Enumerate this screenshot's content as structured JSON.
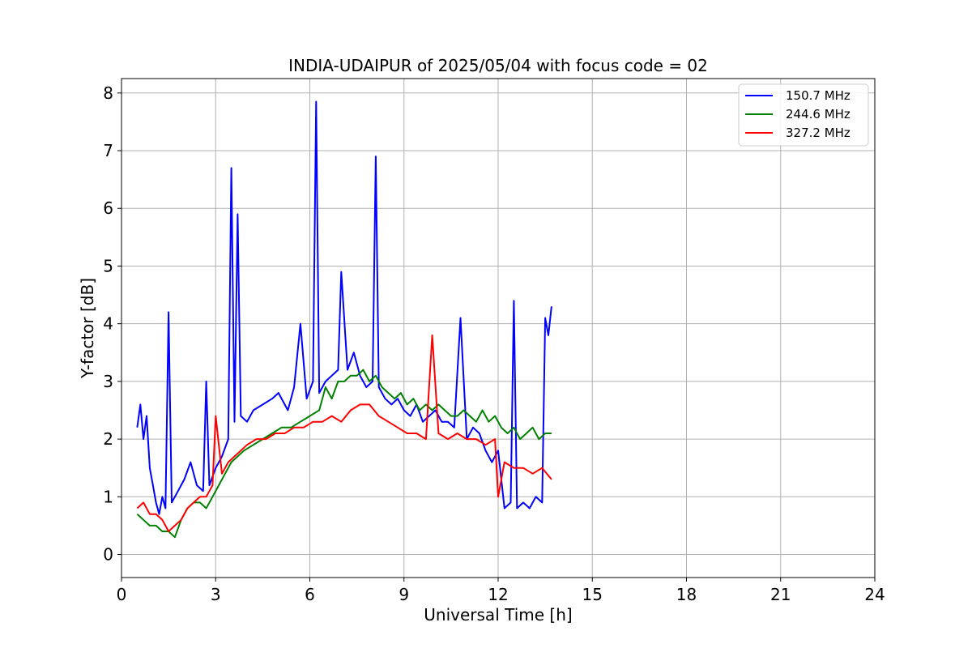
{
  "chart_data": {
    "type": "line",
    "title": "INDIA-UDAIPUR of 2025/05/04 with focus code = 02",
    "xlabel": "Universal Time [h]",
    "ylabel": "Y-factor [dB]",
    "xlim": [
      0,
      24
    ],
    "ylim": [
      -0.4,
      8.25
    ],
    "xticks": [
      0,
      3,
      6,
      9,
      12,
      15,
      18,
      21,
      24
    ],
    "yticks": [
      0,
      1,
      2,
      3,
      4,
      5,
      6,
      7,
      8
    ],
    "grid": true,
    "legend_position": "top-right",
    "series": [
      {
        "name": "150.7 MHz",
        "color": "#0000ff",
        "x": [
          0.5,
          0.6,
          0.7,
          0.8,
          0.9,
          1.0,
          1.1,
          1.2,
          1.3,
          1.4,
          1.5,
          1.6,
          1.8,
          2.0,
          2.2,
          2.4,
          2.6,
          2.7,
          2.8,
          3.0,
          3.2,
          3.4,
          3.5,
          3.6,
          3.7,
          3.8,
          4.0,
          4.2,
          4.5,
          4.8,
          5.0,
          5.3,
          5.5,
          5.7,
          5.9,
          6.1,
          6.2,
          6.3,
          6.5,
          6.7,
          6.9,
          7.0,
          7.2,
          7.4,
          7.6,
          7.8,
          8.0,
          8.1,
          8.2,
          8.4,
          8.6,
          8.8,
          9.0,
          9.2,
          9.4,
          9.6,
          9.8,
          10.0,
          10.2,
          10.4,
          10.6,
          10.8,
          11.0,
          11.2,
          11.4,
          11.6,
          11.8,
          12.0,
          12.2,
          12.4,
          12.5,
          12.6,
          12.8,
          13.0,
          13.2,
          13.4,
          13.5,
          13.6,
          13.7
        ],
        "y": [
          2.2,
          2.6,
          2.0,
          2.4,
          1.5,
          1.2,
          0.9,
          0.7,
          1.0,
          0.8,
          4.2,
          0.9,
          1.1,
          1.3,
          1.6,
          1.2,
          1.1,
          3.0,
          1.2,
          1.5,
          1.7,
          2.0,
          6.7,
          2.3,
          5.9,
          2.4,
          2.3,
          2.5,
          2.6,
          2.7,
          2.8,
          2.5,
          2.9,
          4.0,
          2.7,
          3.0,
          7.85,
          2.8,
          3.0,
          3.1,
          3.2,
          4.9,
          3.2,
          3.5,
          3.1,
          2.9,
          3.0,
          6.9,
          2.9,
          2.7,
          2.6,
          2.7,
          2.5,
          2.4,
          2.6,
          2.3,
          2.4,
          2.5,
          2.3,
          2.3,
          2.2,
          4.1,
          2.0,
          2.2,
          2.1,
          1.8,
          1.6,
          1.8,
          0.8,
          0.9,
          4.4,
          0.8,
          0.9,
          0.8,
          1.0,
          0.9,
          4.1,
          3.8,
          4.3
        ]
      },
      {
        "name": "244.6 MHz",
        "color": "#008000",
        "x": [
          0.5,
          0.7,
          0.9,
          1.1,
          1.3,
          1.5,
          1.7,
          1.9,
          2.1,
          2.3,
          2.5,
          2.7,
          2.9,
          3.1,
          3.3,
          3.5,
          3.7,
          3.9,
          4.2,
          4.5,
          4.8,
          5.1,
          5.4,
          5.7,
          6.0,
          6.3,
          6.5,
          6.7,
          6.9,
          7.1,
          7.3,
          7.5,
          7.7,
          7.9,
          8.1,
          8.3,
          8.5,
          8.7,
          8.9,
          9.1,
          9.3,
          9.5,
          9.7,
          9.9,
          10.1,
          10.3,
          10.5,
          10.7,
          10.9,
          11.1,
          11.3,
          11.5,
          11.7,
          11.9,
          12.1,
          12.3,
          12.5,
          12.7,
          12.9,
          13.1,
          13.3,
          13.5,
          13.7
        ],
        "y": [
          0.7,
          0.6,
          0.5,
          0.5,
          0.4,
          0.4,
          0.3,
          0.6,
          0.8,
          0.9,
          0.9,
          0.8,
          1.0,
          1.2,
          1.4,
          1.6,
          1.7,
          1.8,
          1.9,
          2.0,
          2.1,
          2.2,
          2.2,
          2.3,
          2.4,
          2.5,
          2.9,
          2.7,
          3.0,
          3.0,
          3.1,
          3.1,
          3.2,
          3.0,
          3.1,
          2.9,
          2.8,
          2.7,
          2.8,
          2.6,
          2.7,
          2.5,
          2.6,
          2.5,
          2.6,
          2.5,
          2.4,
          2.4,
          2.5,
          2.4,
          2.3,
          2.5,
          2.3,
          2.4,
          2.2,
          2.1,
          2.2,
          2.0,
          2.1,
          2.2,
          2.0,
          2.1,
          2.1
        ]
      },
      {
        "name": "327.2 MHz",
        "color": "#ff0000",
        "x": [
          0.5,
          0.7,
          0.9,
          1.1,
          1.3,
          1.5,
          1.7,
          1.9,
          2.1,
          2.3,
          2.5,
          2.7,
          2.9,
          3.0,
          3.2,
          3.4,
          3.6,
          3.8,
          4.0,
          4.3,
          4.6,
          4.9,
          5.2,
          5.5,
          5.8,
          6.1,
          6.4,
          6.7,
          7.0,
          7.3,
          7.6,
          7.9,
          8.2,
          8.5,
          8.8,
          9.1,
          9.4,
          9.7,
          9.9,
          10.1,
          10.4,
          10.7,
          11.0,
          11.3,
          11.6,
          11.9,
          12.0,
          12.2,
          12.5,
          12.8,
          13.1,
          13.4,
          13.7
        ],
        "y": [
          0.8,
          0.9,
          0.7,
          0.7,
          0.6,
          0.4,
          0.5,
          0.6,
          0.8,
          0.9,
          1.0,
          1.0,
          1.2,
          2.4,
          1.4,
          1.6,
          1.7,
          1.8,
          1.9,
          2.0,
          2.0,
          2.1,
          2.1,
          2.2,
          2.2,
          2.3,
          2.3,
          2.4,
          2.3,
          2.5,
          2.6,
          2.6,
          2.4,
          2.3,
          2.2,
          2.1,
          2.1,
          2.0,
          3.8,
          2.1,
          2.0,
          2.1,
          2.0,
          2.0,
          1.9,
          2.0,
          1.0,
          1.6,
          1.5,
          1.5,
          1.4,
          1.5,
          1.3
        ]
      }
    ]
  }
}
